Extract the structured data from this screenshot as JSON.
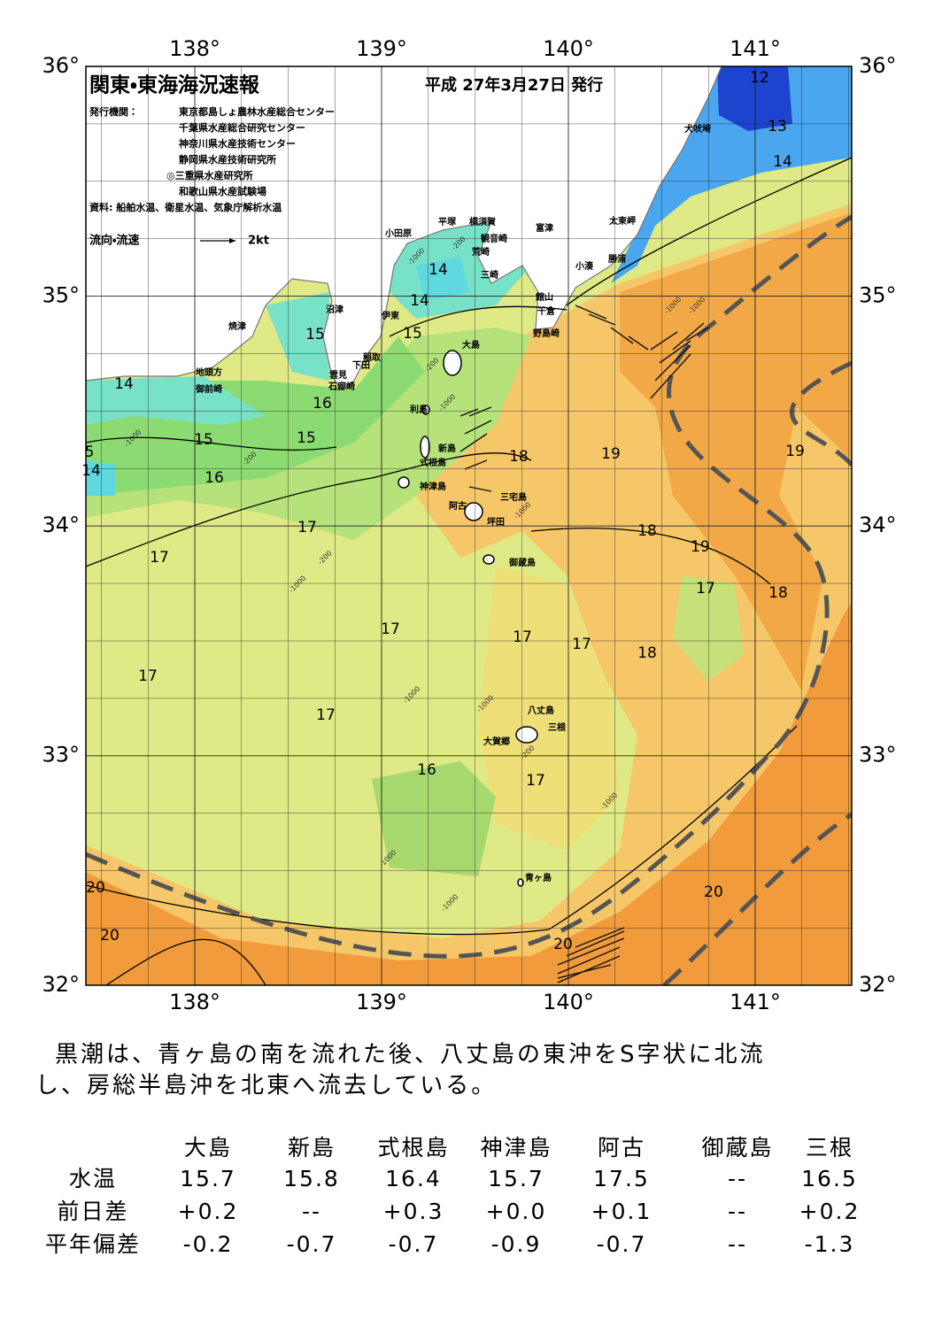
{
  "header": {
    "title": "関東・東海海況速報",
    "date": "平成 27年3月27日 発行",
    "publisher_label": "発行機関：",
    "publishers": [
      "東京都島しょ農林水産総合センター",
      "千葉県水産総合研究センター",
      "神奈川県水産技術センター",
      "静岡県水産技術研究所",
      "◎三重県水産研究所",
      "和歌山県水産試験場"
    ],
    "source": "資料: 船舶水温、衛星水温、気象庁解析水温",
    "legend": "流向・流速",
    "legend_scale": "2kt"
  },
  "map": {
    "lon_ticks": [
      "138°",
      "139°",
      "140°",
      "141°"
    ],
    "lat_ticks": [
      "36°",
      "35°",
      "34°",
      "33°",
      "32°"
    ],
    "places": [
      "小田原",
      "平塚",
      "横須賀",
      "観音崎",
      "荒崎",
      "三崎",
      "富津",
      "太東岬",
      "勝浦",
      "小湊",
      "館山",
      "千倉",
      "野島崎",
      "犬吠埼",
      "沼津",
      "伊東",
      "焼津",
      "稲取",
      "下田",
      "雲見",
      "石廊崎",
      "地頭方",
      "御前崎",
      "大島",
      "利島",
      "新島",
      "式根島",
      "神津島",
      "阿古",
      "三宅島",
      "坪田",
      "御蔵島",
      "八丈島",
      "三根",
      "大賀郷",
      "青ヶ島"
    ],
    "isotherms": [
      "12",
      "13",
      "14",
      "14",
      "14",
      "15",
      "15",
      "14",
      "16",
      "15",
      "15",
      "5",
      "14",
      "16",
      "18",
      "19",
      "19",
      "17",
      "18",
      "17",
      "19",
      "17",
      "18",
      "17",
      "17",
      "17",
      "18",
      "17",
      "17",
      "16",
      "17",
      "20",
      "20",
      "20",
      "20"
    ],
    "depths": [
      "-200",
      "-1000",
      "-200",
      "-1000",
      "-200",
      "-1000",
      "-1000",
      "-200",
      "-1000",
      "-1000",
      "-1000",
      "-1000",
      "-200",
      "-1000",
      "-1000",
      "-1000",
      "-1000"
    ]
  },
  "description": [
    "黒潮は、青ヶ島の南を流れた後、八丈島の東沖をS字状に北流",
    "し、房総半島沖を北東へ流去している。"
  ],
  "table": {
    "columns": [
      "大島",
      "新島",
      "式根島",
      "神津島",
      "阿古",
      "御蔵島",
      "三根"
    ],
    "rows": [
      {
        "label": "水温",
        "cells": [
          "15.7",
          "15.8",
          "16.4",
          "15.7",
          "17.5",
          "--",
          "16.5"
        ]
      },
      {
        "label": "前日差",
        "cells": [
          "+0.2",
          "--",
          "+0.3",
          "+0.0",
          "+0.1",
          "--",
          "+0.2"
        ]
      },
      {
        "label": "平年偏差",
        "cells": [
          "-0.2",
          "-0.7",
          "-0.7",
          "-0.9",
          "-0.7",
          "--",
          "-1.3"
        ]
      }
    ]
  }
}
